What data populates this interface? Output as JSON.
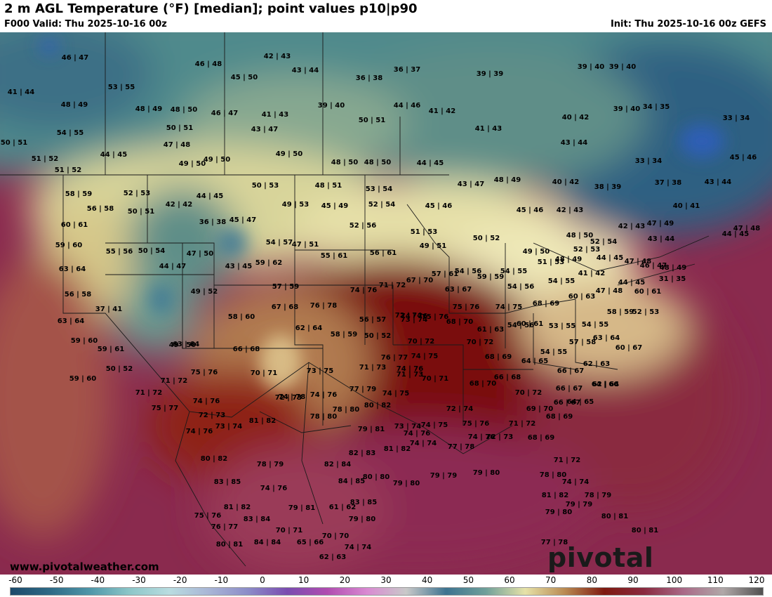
{
  "header": {
    "title": "2 m AGL Temperature (°F) [median]; point values p10|p90",
    "valid": "F000 Valid: Thu 2025-10-16 00z",
    "init": "Init: Thu 2025-10-16 00z GEFS"
  },
  "footer": {
    "website": "www.pivotalweather.com",
    "brand": "pivotal weather"
  },
  "colorbar": {
    "ticks": [
      "-60",
      "-50",
      "-40",
      "-30",
      "-20",
      "-10",
      "0",
      "10",
      "20",
      "30",
      "40",
      "50",
      "60",
      "70",
      "80",
      "90",
      "100",
      "110",
      "120"
    ],
    "colors": [
      "#1c4a6a",
      "#2e6a86",
      "#4f96a8",
      "#8cc6c8",
      "#b9dce0",
      "#a9b6d6",
      "#8c8cc8",
      "#7a4cb0",
      "#b04cb0",
      "#d98ad2",
      "#c9c9c9",
      "#3d7390",
      "#6fa09a",
      "#e6e2a8",
      "#b98a52",
      "#7e1a10",
      "#8a2a40",
      "#aa6a88",
      "#b0a8a8",
      "#505050"
    ]
  },
  "points": [
    {
      "t": "46|47"
    },
    {
      "t": "46|48"
    },
    {
      "t": "42|43"
    },
    {
      "t": "43|44"
    },
    {
      "t": "36|37"
    },
    {
      "t": "39|39"
    },
    {
      "t": "39|40"
    },
    {
      "t": "39|40"
    },
    {
      "t": "41|44"
    },
    {
      "t": "53|55"
    },
    {
      "t": "45|50"
    },
    {
      "t": "36|38"
    },
    {
      "t": "48|49"
    },
    {
      "t": "48|49"
    },
    {
      "t": "48|50"
    },
    {
      "t": "46|47"
    },
    {
      "t": "41|43"
    },
    {
      "t": "39|40"
    },
    {
      "t": "44|46"
    },
    {
      "t": "41|42"
    },
    {
      "t": "40|42"
    },
    {
      "t": "39|40"
    },
    {
      "t": "34|35"
    },
    {
      "t": "33|34"
    },
    {
      "t": "54|55"
    },
    {
      "t": "50|51"
    },
    {
      "t": "43|47"
    },
    {
      "t": "50|51"
    },
    {
      "t": "41|43"
    },
    {
      "t": "50|51"
    },
    {
      "t": "47|48"
    },
    {
      "t": "43|44"
    },
    {
      "t": "44|45"
    },
    {
      "t": "51|52"
    },
    {
      "t": "49|50"
    },
    {
      "t": "49|50"
    },
    {
      "t": "49|50"
    },
    {
      "t": "48|50"
    },
    {
      "t": "48|50"
    },
    {
      "t": "44|45"
    },
    {
      "t": "33|34"
    },
    {
      "t": "45|46"
    },
    {
      "t": "51|52"
    },
    {
      "t": "58|59"
    },
    {
      "t": "52|53"
    },
    {
      "t": "44|45"
    },
    {
      "t": "50|53"
    },
    {
      "t": "48|51"
    },
    {
      "t": "53|54"
    },
    {
      "t": "43|47"
    },
    {
      "t": "48|49"
    },
    {
      "t": "40|42"
    },
    {
      "t": "38|39"
    },
    {
      "t": "37|38"
    },
    {
      "t": "43|44"
    },
    {
      "t": "56|58"
    },
    {
      "t": "42|42"
    },
    {
      "t": "50|51"
    },
    {
      "t": "49|53"
    },
    {
      "t": "45|49"
    },
    {
      "t": "52|54"
    },
    {
      "t": "45|46"
    },
    {
      "t": "45|46"
    },
    {
      "t": "42|43"
    },
    {
      "t": "40|41"
    },
    {
      "t": "60|61"
    },
    {
      "t": "36|38"
    },
    {
      "t": "45|47"
    },
    {
      "t": "52|56"
    },
    {
      "t": "51|53"
    },
    {
      "t": "48|50"
    },
    {
      "t": "42|43"
    },
    {
      "t": "47|49"
    },
    {
      "t": "47|48"
    },
    {
      "t": "44|45"
    },
    {
      "t": "59|60"
    },
    {
      "t": "55|56"
    },
    {
      "t": "50|54"
    },
    {
      "t": "47|50"
    },
    {
      "t": "54|57"
    },
    {
      "t": "47|51"
    },
    {
      "t": "50|52"
    },
    {
      "t": "52|54"
    },
    {
      "t": "43|44"
    },
    {
      "t": "49|51"
    },
    {
      "t": "52|53"
    },
    {
      "t": "63|64"
    },
    {
      "t": "44|47"
    },
    {
      "t": "43|45"
    },
    {
      "t": "59|62"
    },
    {
      "t": "55|61"
    },
    {
      "t": "56|61"
    },
    {
      "t": "49|50"
    },
    {
      "t": "44|45"
    },
    {
      "t": "47|48"
    },
    {
      "t": "46|47"
    },
    {
      "t": "56|58"
    },
    {
      "t": "49|52"
    },
    {
      "t": "57|59"
    },
    {
      "t": "54|55"
    },
    {
      "t": "51|53"
    },
    {
      "t": "48|49"
    },
    {
      "t": "48|49"
    },
    {
      "t": "31|35"
    },
    {
      "t": "37|41"
    },
    {
      "t": "67|68"
    },
    {
      "t": "76|78"
    },
    {
      "t": "74|76"
    },
    {
      "t": "71|72"
    },
    {
      "t": "67|70"
    },
    {
      "t": "63|67"
    },
    {
      "t": "57|61"
    },
    {
      "t": "54|56"
    },
    {
      "t": "59|59"
    },
    {
      "t": "54|56"
    },
    {
      "t": "54|55"
    },
    {
      "t": "41|42"
    },
    {
      "t": "44|45"
    },
    {
      "t": "60|61"
    },
    {
      "t": "47|48"
    },
    {
      "t": "63|64"
    },
    {
      "t": "58|60"
    },
    {
      "t": "62|64"
    },
    {
      "t": "56|57"
    },
    {
      "t": "72|74"
    },
    {
      "t": "75|76"
    },
    {
      "t": "75|76"
    },
    {
      "t": "74|75"
    },
    {
      "t": "68|69"
    },
    {
      "t": "60|63"
    },
    {
      "t": "58|59"
    },
    {
      "t": "52|53"
    },
    {
      "t": "54|56"
    },
    {
      "t": "58|59"
    },
    {
      "t": "50|52"
    },
    {
      "t": "74|76"
    },
    {
      "t": "74|75"
    },
    {
      "t": "73|74"
    },
    {
      "t": "68|70"
    },
    {
      "t": "61|63"
    },
    {
      "t": "60|61"
    },
    {
      "t": "53|55"
    },
    {
      "t": "54|55"
    },
    {
      "t": "57|58"
    },
    {
      "t": "63|64"
    },
    {
      "t": "59|60"
    },
    {
      "t": "59|61"
    },
    {
      "t": "63|64"
    },
    {
      "t": "66|68"
    },
    {
      "t": "70|72"
    },
    {
      "t": "70|72"
    },
    {
      "t": "54|55"
    },
    {
      "t": "60|67"
    },
    {
      "t": "59|60"
    },
    {
      "t": "50|52"
    },
    {
      "t": "49|50"
    },
    {
      "t": "75|76"
    },
    {
      "t": "76|77"
    },
    {
      "t": "71|73"
    },
    {
      "t": "74|76"
    },
    {
      "t": "68|69"
    },
    {
      "t": "64|65"
    },
    {
      "t": "62|63"
    },
    {
      "t": "66|67"
    },
    {
      "t": "62|64"
    },
    {
      "t": "71|72"
    },
    {
      "t": "70|71"
    },
    {
      "t": "73|75"
    },
    {
      "t": "70|71"
    },
    {
      "t": "68|70"
    },
    {
      "t": "66|68"
    },
    {
      "t": "64|66"
    },
    {
      "t": "66|67"
    },
    {
      "t": "71|72"
    },
    {
      "t": "74|76"
    },
    {
      "t": "74|78"
    },
    {
      "t": "74|76"
    },
    {
      "t": "77|79"
    },
    {
      "t": "74|75"
    },
    {
      "t": "72|74"
    },
    {
      "t": "70|72"
    },
    {
      "t": "66|67"
    },
    {
      "t": "64|65"
    },
    {
      "t": "75|77"
    },
    {
      "t": "72|73"
    },
    {
      "t": "74|76"
    },
    {
      "t": "72|73"
    },
    {
      "t": "69|70"
    },
    {
      "t": "68|69"
    },
    {
      "t": "73|74"
    },
    {
      "t": "81|82"
    },
    {
      "t": "78|80"
    },
    {
      "t": "80|82"
    },
    {
      "t": "78|80"
    },
    {
      "t": "73|74"
    },
    {
      "t": "74|75"
    },
    {
      "t": "71|73"
    },
    {
      "t": "74|76"
    },
    {
      "t": "75|76"
    },
    {
      "t": "71|72"
    },
    {
      "t": "79|81"
    },
    {
      "t": "72|73"
    },
    {
      "t": "68|69"
    },
    {
      "t": "80|82"
    },
    {
      "t": "78|79"
    },
    {
      "t": "82|84"
    },
    {
      "t": "82|83"
    },
    {
      "t": "81|82"
    },
    {
      "t": "74|74"
    },
    {
      "t": "77|78"
    },
    {
      "t": "74|76"
    },
    {
      "t": "71|72"
    },
    {
      "t": "83|85"
    },
    {
      "t": "74|76"
    },
    {
      "t": "84|85"
    },
    {
      "t": "80|80"
    },
    {
      "t": "79|80"
    },
    {
      "t": "79|79"
    },
    {
      "t": "79|80"
    },
    {
      "t": "78|80"
    },
    {
      "t": "74|74"
    },
    {
      "t": "81|82"
    },
    {
      "t": "79|81"
    },
    {
      "t": "81|82"
    },
    {
      "t": "61|62"
    },
    {
      "t": "83|85"
    },
    {
      "t": "79|80"
    },
    {
      "t": "78|79"
    },
    {
      "t": "79|80"
    },
    {
      "t": "75|76"
    },
    {
      "t": "83|84"
    },
    {
      "t": "79|79"
    },
    {
      "t": "80|81"
    },
    {
      "t": "76|77"
    },
    {
      "t": "70|71"
    },
    {
      "t": "70|70"
    },
    {
      "t": "80|81"
    },
    {
      "t": "80|81"
    },
    {
      "t": "84|84"
    },
    {
      "t": "65|66"
    },
    {
      "t": "74|74"
    },
    {
      "t": "62|63"
    },
    {
      "t": "77|78"
    }
  ]
}
